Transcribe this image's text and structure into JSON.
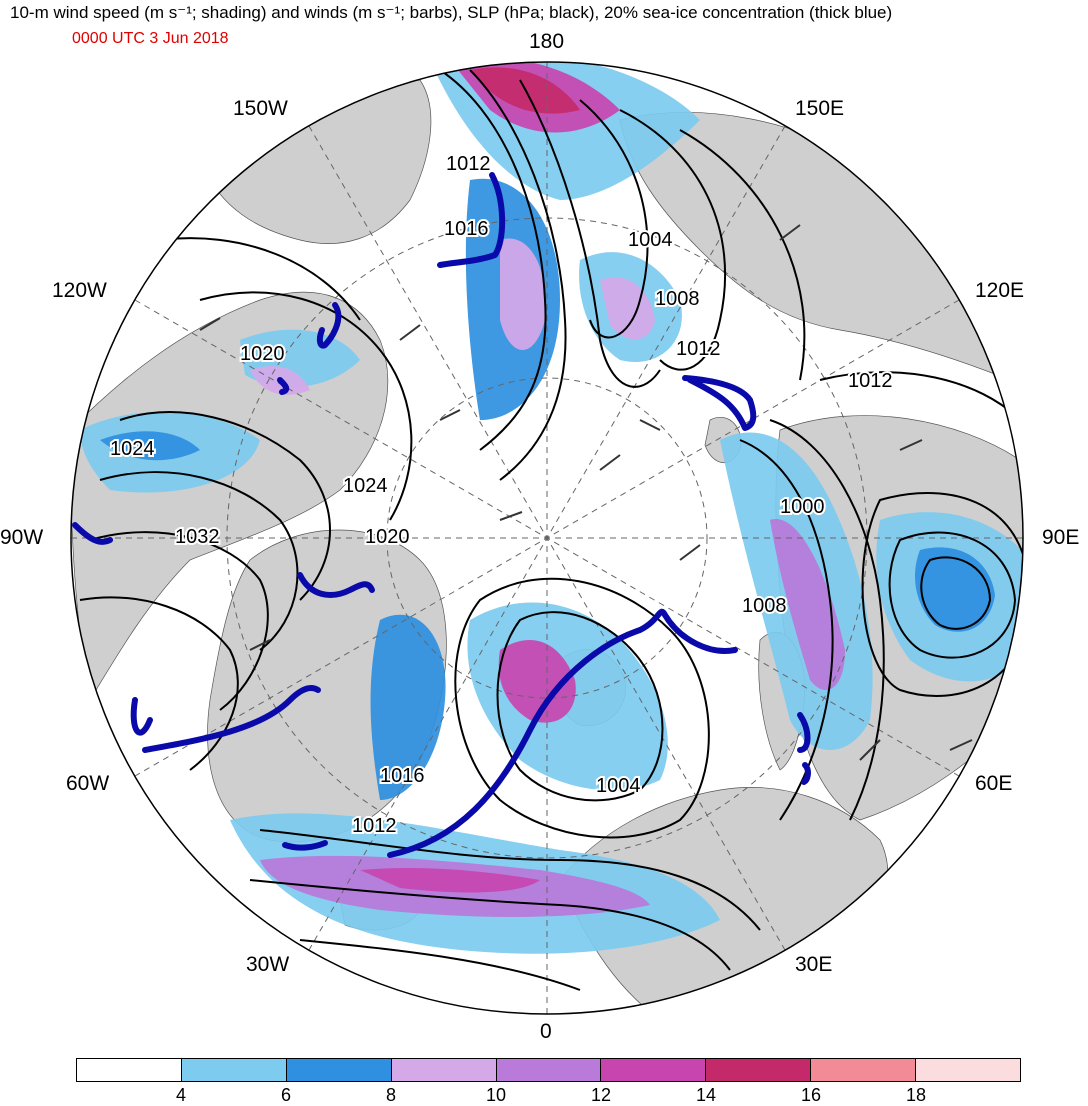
{
  "header": {
    "title": "10-m wind speed (m s⁻¹; shading) and winds (m s⁻¹; barbs), SLP (hPa; black), 20% sea-ice concentration (thick blue)",
    "date": "0000 UTC 3 Jun 2018"
  },
  "longitude_labels": [
    "180",
    "150E",
    "120E",
    "90E",
    "60E",
    "30E",
    "0",
    "30W",
    "60W",
    "90W",
    "120W",
    "150W"
  ],
  "slp_labels": [
    "1012",
    "1016",
    "1004",
    "1008",
    "1012",
    "1012",
    "1020",
    "1024",
    "1024",
    "1032",
    "1020",
    "1000",
    "1008",
    "1004",
    "1016",
    "1012"
  ],
  "colorbar": {
    "ticks": [
      "4",
      "6",
      "8",
      "10",
      "12",
      "14",
      "16",
      "18"
    ],
    "colors": [
      "#ffffff",
      "#7dcbef",
      "#2f8fe0",
      "#d5a8e8",
      "#b97ad9",
      "#c845b0",
      "#c42a6a",
      "#f28b96",
      "#fbdde0"
    ]
  },
  "colors": {
    "land": "#cfcfcf",
    "ice_edge": "#0a0aaa",
    "isobar": "#000000",
    "date_text": "#e00000"
  }
}
